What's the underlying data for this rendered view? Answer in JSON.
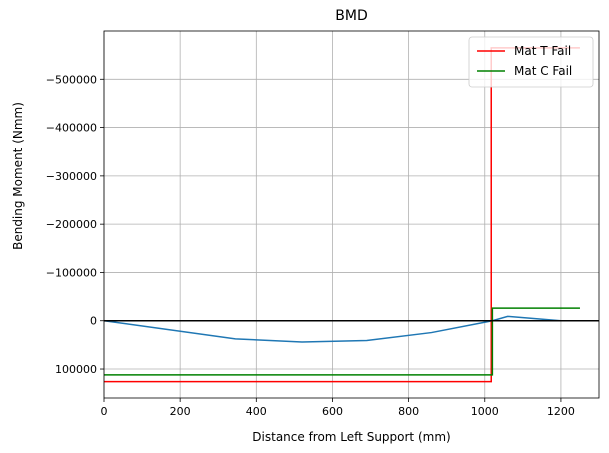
{
  "chart_data": {
    "type": "line",
    "title": "BMD",
    "xlabel": "Distance from Left Support (mm)",
    "ylabel": "Bending Moment (Nmm)",
    "xlim": [
      0,
      1300
    ],
    "ylim": [
      160000,
      -600000
    ],
    "y_inverted": true,
    "grid": true,
    "legend_position": "top-right",
    "xticks": [
      0,
      200,
      400,
      600,
      800,
      1000,
      1200
    ],
    "xtick_labels": [
      "0",
      "200",
      "400",
      "600",
      "800",
      "1000",
      "1200"
    ],
    "yticks": [
      -500000,
      -400000,
      -300000,
      -200000,
      -100000,
      0,
      100000
    ],
    "ytick_labels": [
      "−500000",
      "−400000",
      "−300000",
      "−200000",
      "−100000",
      "0",
      "100000"
    ],
    "zero_line": {
      "y": 0,
      "color": "#000000"
    },
    "series": [
      {
        "name": "",
        "color": "#1f77b4",
        "x": [
          0,
          345,
          520,
          690,
          860,
          1020,
          1060,
          1200
        ],
        "y": [
          0,
          37500,
          44000,
          41000,
          24500,
          0,
          -9000,
          0
        ]
      },
      {
        "name": "Mat T Fail",
        "color": "#ff0000",
        "x": [
          0,
          1017,
          1017,
          1250
        ],
        "y": [
          126000,
          126000,
          -565000,
          -565000
        ]
      },
      {
        "name": "Mat C Fail",
        "color": "#008000",
        "x": [
          0,
          1020,
          1020,
          1250
        ],
        "y": [
          112000,
          112000,
          -26000,
          -26000
        ]
      }
    ]
  }
}
